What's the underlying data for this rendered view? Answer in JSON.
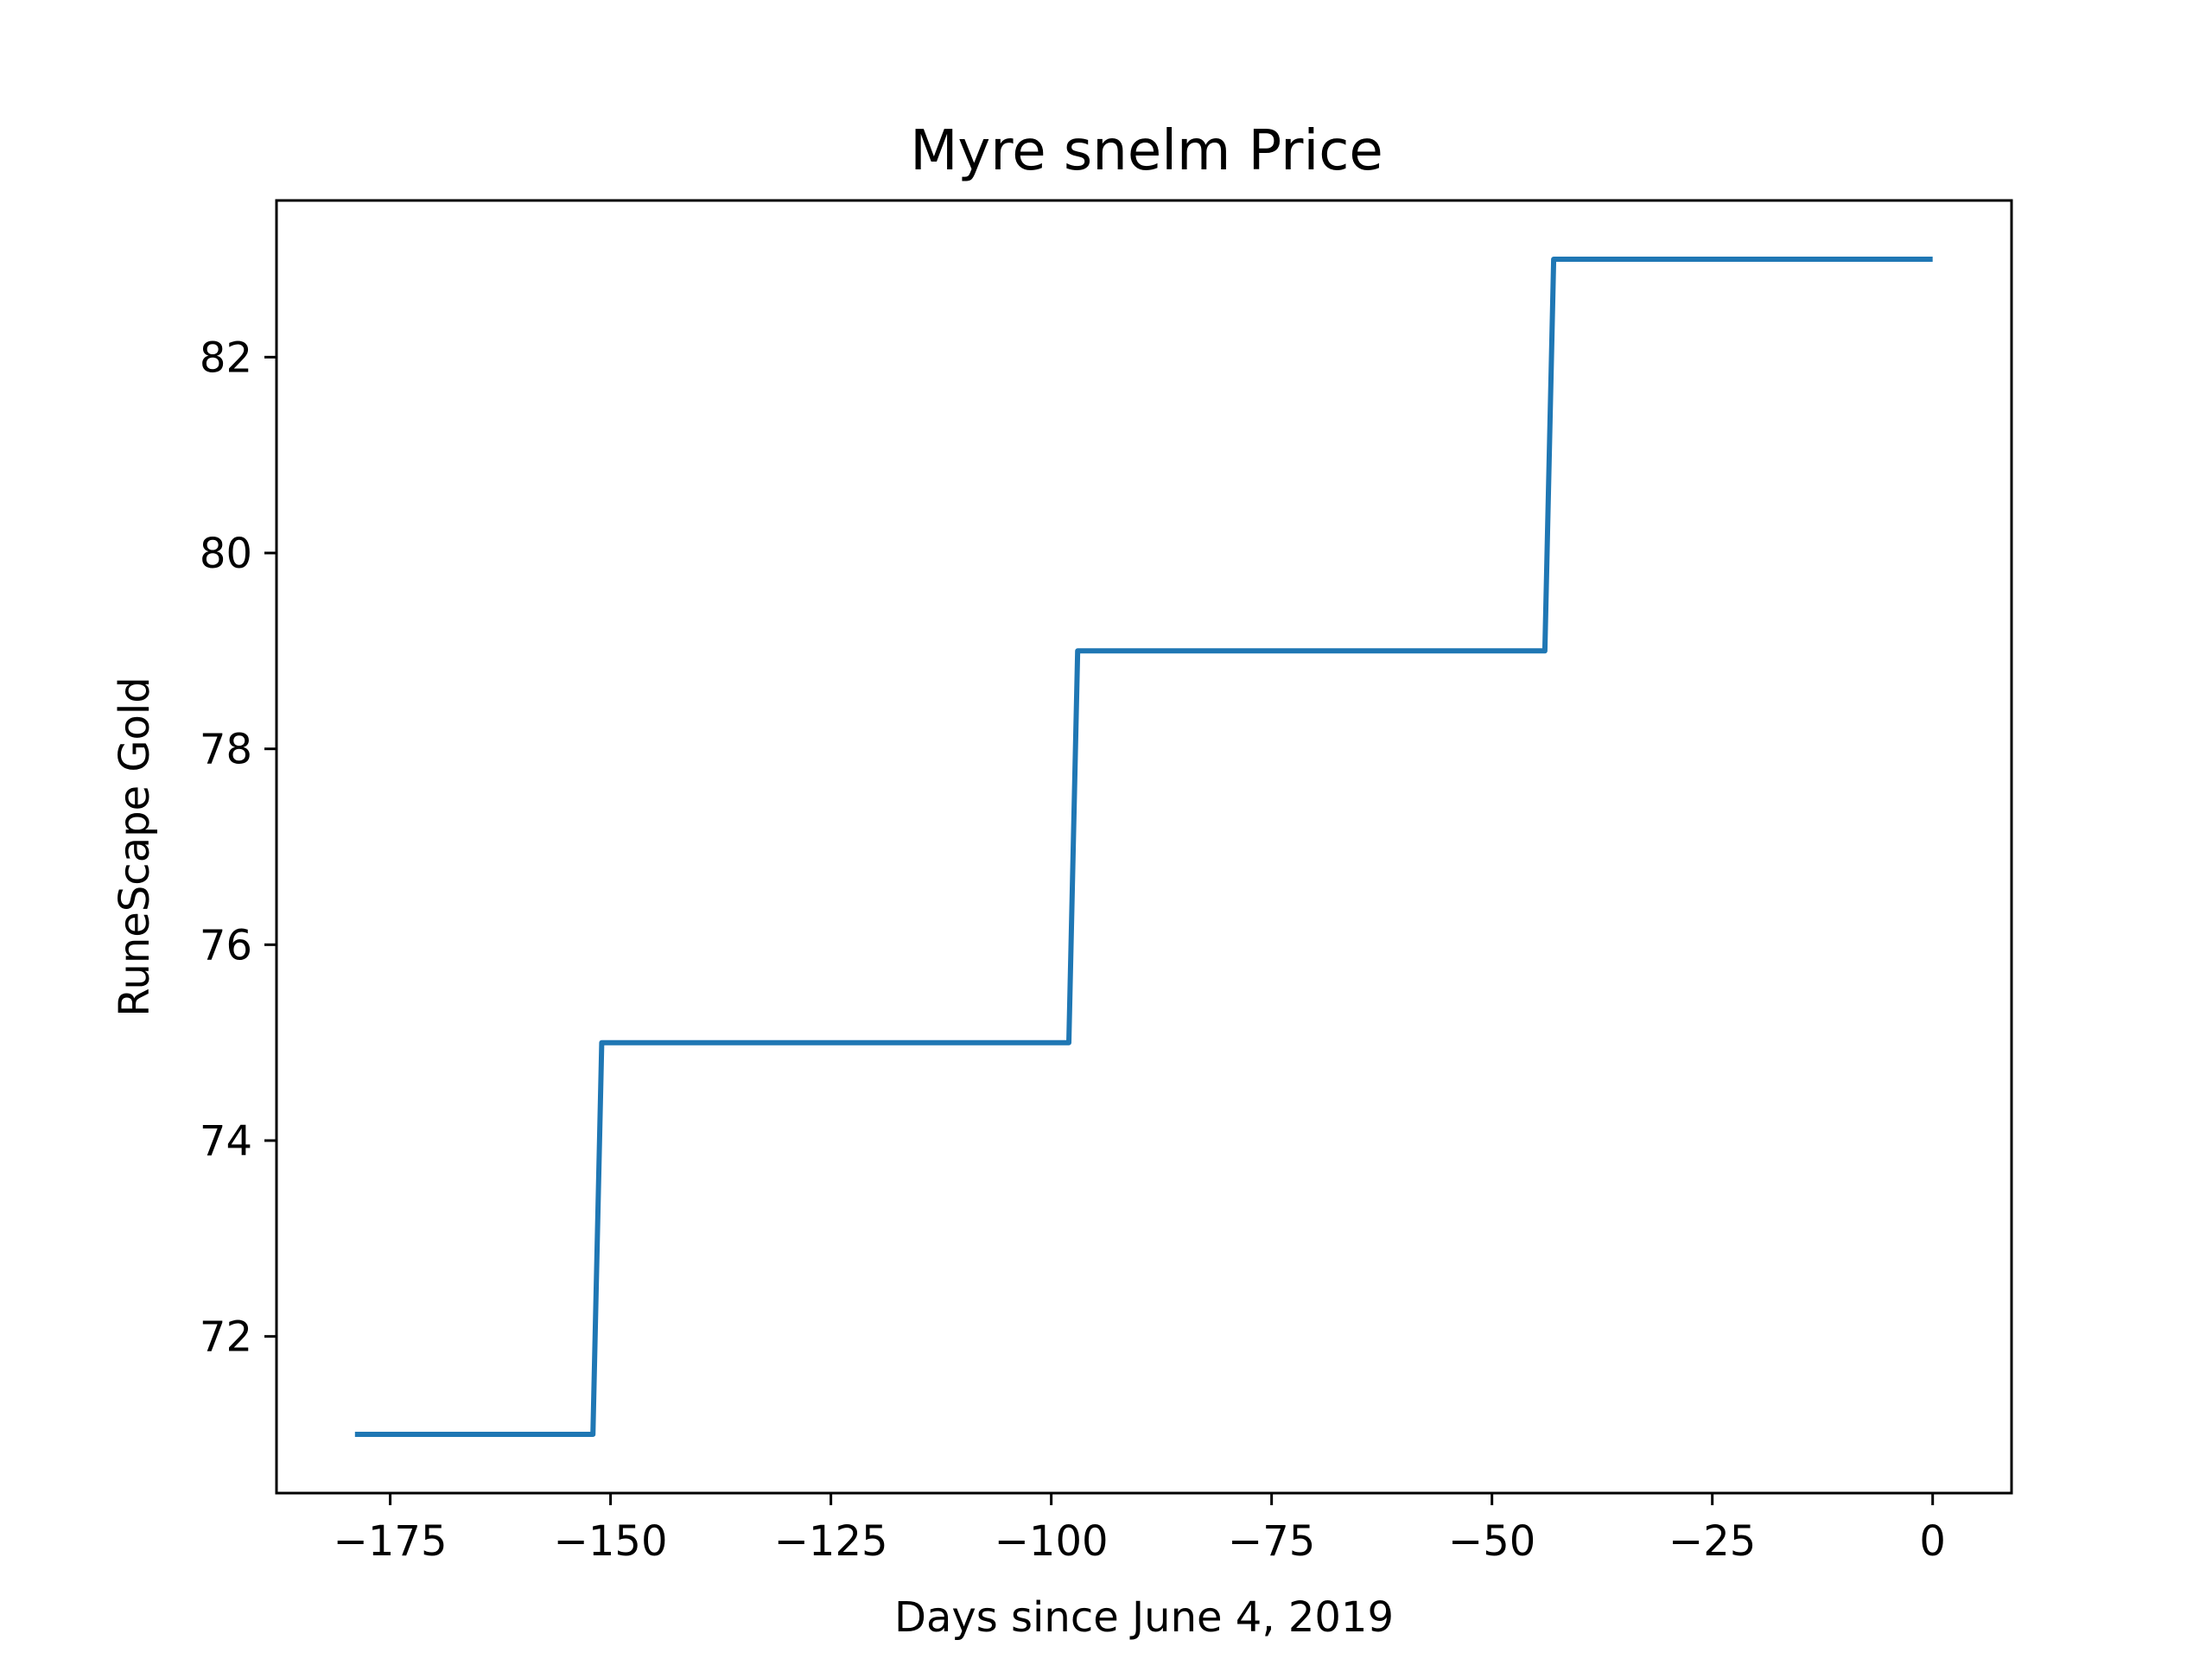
{
  "chart_data": {
    "type": "line",
    "title": "Myre snelm Price",
    "xlabel": "Days since June 4, 2019",
    "ylabel": "RuneScape Gold",
    "xlim": [
      -187.9,
      8.95
    ],
    "ylim": [
      70.4,
      83.6
    ],
    "xticks": [
      -175,
      -150,
      -125,
      -100,
      -75,
      -50,
      -25,
      0
    ],
    "xtick_labels": [
      "−175",
      "−150",
      "−125",
      "−100",
      "−75",
      "−50",
      "−25",
      "0"
    ],
    "yticks": [
      72,
      74,
      76,
      78,
      80,
      82
    ],
    "ytick_labels": [
      "72",
      "74",
      "76",
      "78",
      "80",
      "82"
    ],
    "grid": false,
    "series": [
      {
        "color": "#1f77b4",
        "x": [
          -179,
          -152,
          -151,
          -98,
          -97,
          -44,
          -43,
          0
        ],
        "y": [
          71,
          71,
          75,
          75,
          79,
          79,
          83,
          83
        ]
      }
    ]
  }
}
